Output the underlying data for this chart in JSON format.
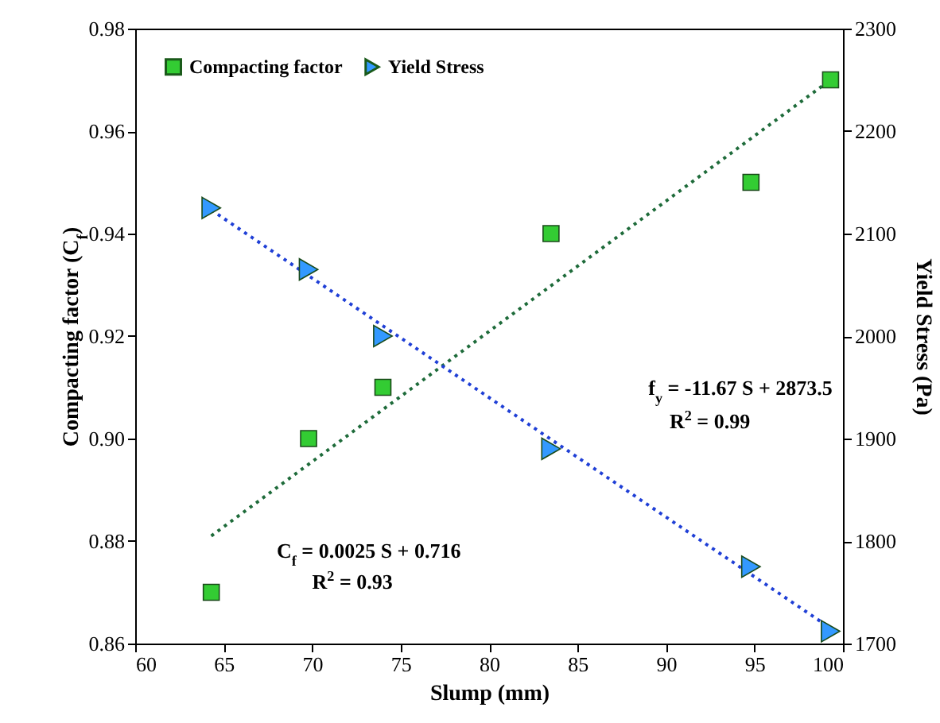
{
  "chart_data": {
    "type": "scatter",
    "xlabel": "Slump (mm)",
    "ylabel": "Compacting factor (C$_{f}$)",
    "y2label": "Yield Stress (Pa)",
    "xlim": [
      60,
      100
    ],
    "xticks": [
      60,
      65,
      70,
      75,
      80,
      85,
      90,
      95,
      100
    ],
    "ylim": [
      0.86,
      0.98
    ],
    "yticks": [
      0.86,
      0.88,
      {
        "value": 0.9,
        "label": "0.90"
      },
      0.92,
      0.94,
      0.96,
      0.98
    ],
    "y2lim": [
      1700,
      2300
    ],
    "y2ticks": [
      1700,
      1800,
      1900,
      2000,
      2100,
      2200,
      2300
    ],
    "legend": "top left",
    "grid": false,
    "series": [
      {
        "name": "Compacting factor",
        "marker": "square",
        "color": "#33cc33",
        "x": [
          64.3,
          69.8,
          74,
          83.5,
          94.8,
          99.3
        ],
        "values": [
          0.87,
          0.9,
          0.91,
          0.94,
          0.95,
          0.97
        ]
      },
      {
        "name": "Yield Stress",
        "marker": "triangle",
        "axis": "y2",
        "color": "#3399ff",
        "x": [
          64.3,
          69.8,
          74,
          83.5,
          94.8,
          99.3
        ],
        "values": [
          2125,
          2065,
          2000,
          1890,
          1775,
          1712
        ]
      },
      {
        "type": "line",
        "line_style": "dotted",
        "color": "#1e6b3a",
        "x": [
          64.3,
          99.3
        ],
        "values": [
          0.881,
          0.97
        ]
      },
      {
        "type": "line",
        "line_style": "dotted",
        "axis": "y2",
        "color": "#1f3fd6",
        "x": [
          64.3,
          99.3
        ],
        "values": [
          2123,
          1715
        ]
      }
    ],
    "annotations": [
      "C$_{f}$ = 0.0025 S + 0.716",
      "R$^{2}$ = 0.93",
      "f$_{y}$ = -11.67 S + 2873.5",
      "R$^{2}$ = 0.99"
    ]
  }
}
